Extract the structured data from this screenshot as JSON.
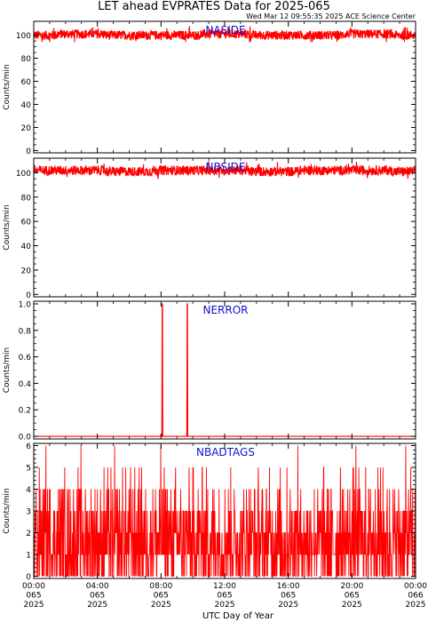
{
  "title": "LET ahead EVPRATES Data for 2025-065",
  "timestamp": "Wed Mar 12 09:55:35 2025 ACE Science Center",
  "xlabel": "UTC Day of Year",
  "colors": {
    "data": "#ff0000",
    "panel_title": "#1010d0",
    "axes": "#000000"
  },
  "chart_data": [
    {
      "type": "line",
      "panel_title": "NASIDE",
      "ylabel": "Counts/min",
      "ylim": [
        -2,
        112
      ],
      "yticks": [
        0,
        20,
        40,
        60,
        80,
        100
      ],
      "xlim": [
        0,
        24
      ],
      "description": "continuous noisy trace around 100 counts/min for entire day",
      "series": [
        {
          "name": "",
          "x": [
            0,
            3,
            6,
            9,
            12,
            15,
            18,
            21,
            24
          ],
          "y": [
            100,
            101,
            100,
            100,
            101,
            100,
            100,
            101,
            100
          ],
          "range": [
            94,
            108
          ]
        }
      ]
    },
    {
      "type": "line",
      "panel_title": "NBSIDE",
      "ylabel": "Counts/min",
      "ylim": [
        -2,
        112
      ],
      "yticks": [
        0,
        20,
        40,
        60,
        80,
        100
      ],
      "xlim": [
        0,
        24
      ],
      "series": [
        {
          "name": "",
          "x": [
            0,
            3,
            6,
            9,
            12,
            15,
            18,
            21,
            24
          ],
          "y": [
            102,
            102,
            101,
            102,
            102,
            101,
            102,
            102,
            101
          ],
          "range": [
            95,
            110
          ]
        }
      ]
    },
    {
      "type": "line",
      "panel_title": "NERROR",
      "ylabel": "Counts/min",
      "ylim": [
        -0.02,
        1.02
      ],
      "yticks": [
        0.0,
        0.2,
        0.4,
        0.6,
        0.8,
        1.0
      ],
      "xlim": [
        0,
        24
      ],
      "series": [
        {
          "name": "",
          "x": [
            0,
            8.05,
            8.07,
            8.09,
            8.11,
            9.62,
            9.64,
            9.66,
            9.68,
            24
          ],
          "y": [
            0,
            0,
            1,
            1,
            0,
            0,
            1,
            1,
            0,
            0
          ]
        }
      ]
    },
    {
      "type": "line",
      "panel_title": "NBADTAGS",
      "ylabel": "Counts/min",
      "ylim": [
        -0.1,
        6.1
      ],
      "yticks": [
        0,
        1,
        2,
        3,
        4,
        5,
        6
      ],
      "xlim": [
        0,
        24
      ],
      "series": [
        {
          "name": "",
          "x": [
            0,
            24
          ],
          "y": [
            1.8,
            1.8
          ],
          "range": [
            0,
            6
          ]
        }
      ]
    }
  ],
  "xticks": [
    {
      "value": 0,
      "labels": [
        "00:00",
        "065",
        "2025"
      ]
    },
    {
      "value": 4,
      "labels": [
        "04:00",
        "065",
        "2025"
      ]
    },
    {
      "value": 8,
      "labels": [
        "08:00",
        "065",
        "2025"
      ]
    },
    {
      "value": 12,
      "labels": [
        "12:00",
        "065",
        "2025"
      ]
    },
    {
      "value": 16,
      "labels": [
        "16:00",
        "065",
        "2025"
      ]
    },
    {
      "value": 20,
      "labels": [
        "20:00",
        "065",
        "2025"
      ]
    },
    {
      "value": 24,
      "labels": [
        "00:00",
        "066",
        "2025"
      ]
    }
  ]
}
